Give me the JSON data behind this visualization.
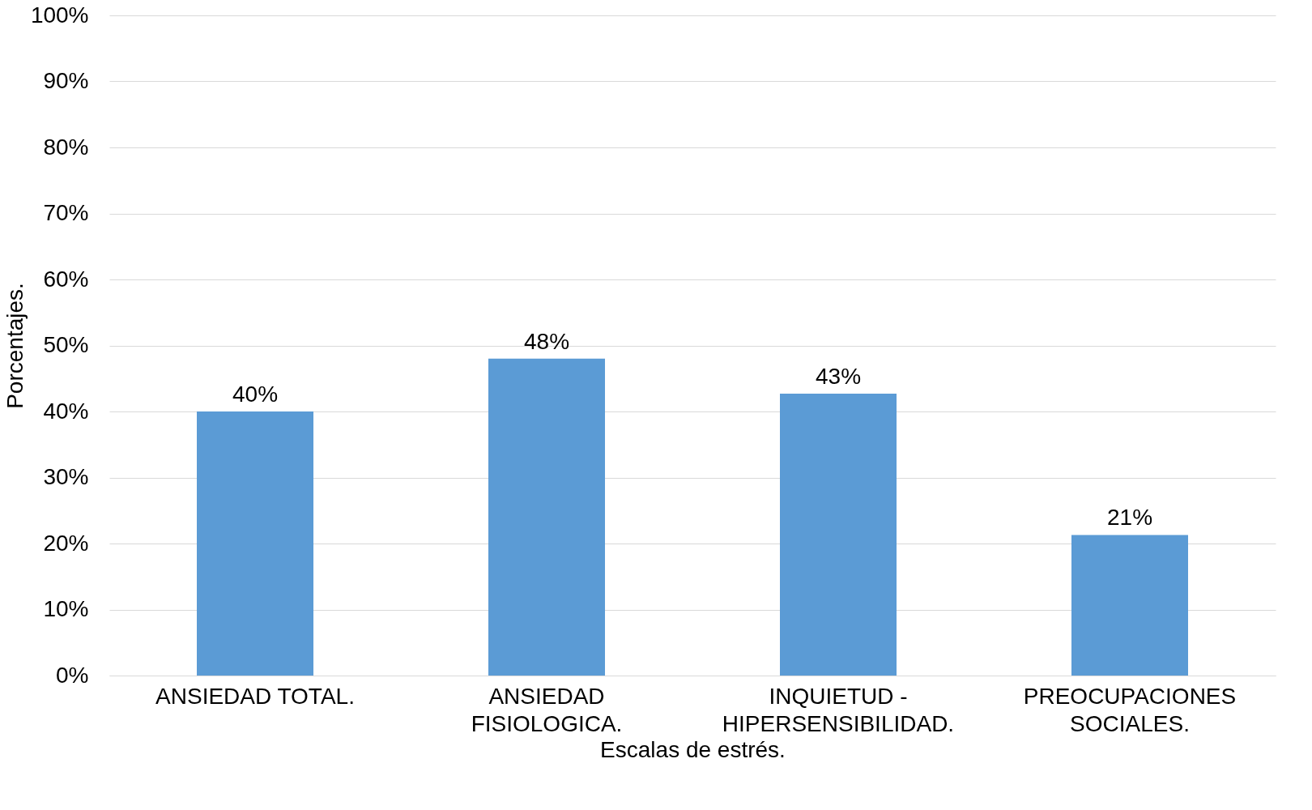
{
  "chart_data": {
    "type": "bar",
    "xlabel": "Escalas de estrés.",
    "ylabel": "Porcentajes.",
    "categories": [
      "ANSIEDAD TOTAL.",
      "ANSIEDAD FISIOLOGICA.",
      "INQUIETUD - HIPERSENSIBILIDAD.",
      "PREOCUPACIONES SOCIALES."
    ],
    "values": [
      40,
      48,
      42.7,
      21.3
    ],
    "value_labels": [
      "40%",
      "48%",
      "43%",
      "21%"
    ],
    "color": "#5b9bd5",
    "ylim": [
      0,
      100
    ],
    "yticks": [
      {
        "value": 0,
        "label": "0%"
      },
      {
        "value": 10,
        "label": "10%"
      },
      {
        "value": 20,
        "label": "20%"
      },
      {
        "value": 30,
        "label": "30%"
      },
      {
        "value": 40,
        "label": "40%"
      },
      {
        "value": 50,
        "label": "50%"
      },
      {
        "value": 60,
        "label": "60%"
      },
      {
        "value": 70,
        "label": "70%"
      },
      {
        "value": 80,
        "label": "80%"
      },
      {
        "value": 90,
        "label": "90%"
      },
      {
        "value": 100,
        "label": "100%"
      }
    ],
    "grid": "y"
  }
}
